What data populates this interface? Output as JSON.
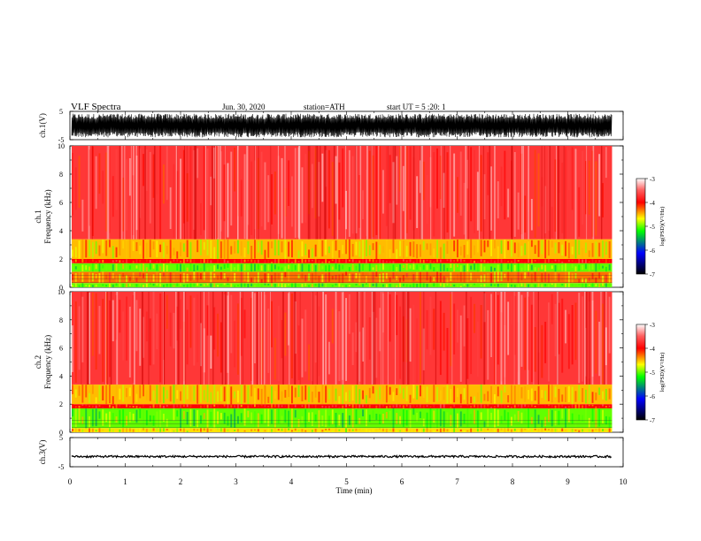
{
  "header": {
    "title": "VLF Spectra",
    "date": "Jun. 30, 2020",
    "station": "station=ATH",
    "start": "start UT =   5 :20: 1"
  },
  "colorbar": {
    "label": "log(PSD)(V²/Hz)",
    "ticks": [
      "-3",
      "-4",
      "-5",
      "-6",
      "-7"
    ],
    "stops": [
      "#ffffff",
      "#ff0000",
      "#ffff00",
      "#00ff00",
      "#0000ff",
      "#000000"
    ]
  },
  "chart_data": [
    {
      "type": "line",
      "ylabel": "ch.1(V)",
      "ylim": [
        -5,
        5
      ],
      "yticks": [
        "5",
        "-5"
      ],
      "xlim": [
        0,
        10
      ],
      "description_values": {
        "amplitude_range": [
          -5,
          5
        ]
      }
    },
    {
      "type": "heatmap",
      "ylabel": "ch.1\nFrequency (kHz)",
      "ylabel_lines": [
        "ch.1",
        "Frequency (kHz)"
      ],
      "ylim": [
        0,
        10
      ],
      "yticks": [
        "0",
        "2",
        "4",
        "6",
        "8",
        "10"
      ],
      "xlim": [
        0,
        10
      ],
      "bands_khz": [
        {
          "from": 0.0,
          "to": 0.3,
          "level": -5
        },
        {
          "from": 0.3,
          "to": 1.1,
          "level": -4.3
        },
        {
          "from": 1.1,
          "to": 1.7,
          "level": -5
        },
        {
          "from": 1.7,
          "to": 2.0,
          "level": -4
        },
        {
          "from": 2.0,
          "to": 3.4,
          "level": -4.5
        },
        {
          "from": 3.4,
          "to": 10.0,
          "level": -3.7
        }
      ]
    },
    {
      "type": "heatmap",
      "ylabel": "ch.2\nFrequency (kHz)",
      "ylabel_lines": [
        "ch.2",
        "Frequency (kHz)"
      ],
      "ylim": [
        0,
        10
      ],
      "yticks": [
        "0",
        "2",
        "4",
        "6",
        "8",
        "10"
      ],
      "xlim": [
        0,
        10
      ],
      "bands_khz": [
        {
          "from": 0.0,
          "to": 0.3,
          "level": -4.6
        },
        {
          "from": 0.3,
          "to": 1.7,
          "level": -5
        },
        {
          "from": 1.7,
          "to": 2.0,
          "level": -4
        },
        {
          "from": 2.0,
          "to": 3.4,
          "level": -4.5
        },
        {
          "from": 3.4,
          "to": 10.0,
          "level": -3.7
        }
      ]
    },
    {
      "type": "line",
      "ylabel": "ch.3(V)",
      "ylim": [
        -5,
        5
      ],
      "yticks": [
        "5",
        "-5"
      ],
      "xlim": [
        0,
        10
      ],
      "level": -1.5
    }
  ],
  "xaxis": {
    "label": "Time (min)",
    "ticks": [
      "0",
      "1",
      "2",
      "3",
      "4",
      "5",
      "6",
      "7",
      "8",
      "9",
      "10"
    ],
    "data_end": 9.8
  }
}
